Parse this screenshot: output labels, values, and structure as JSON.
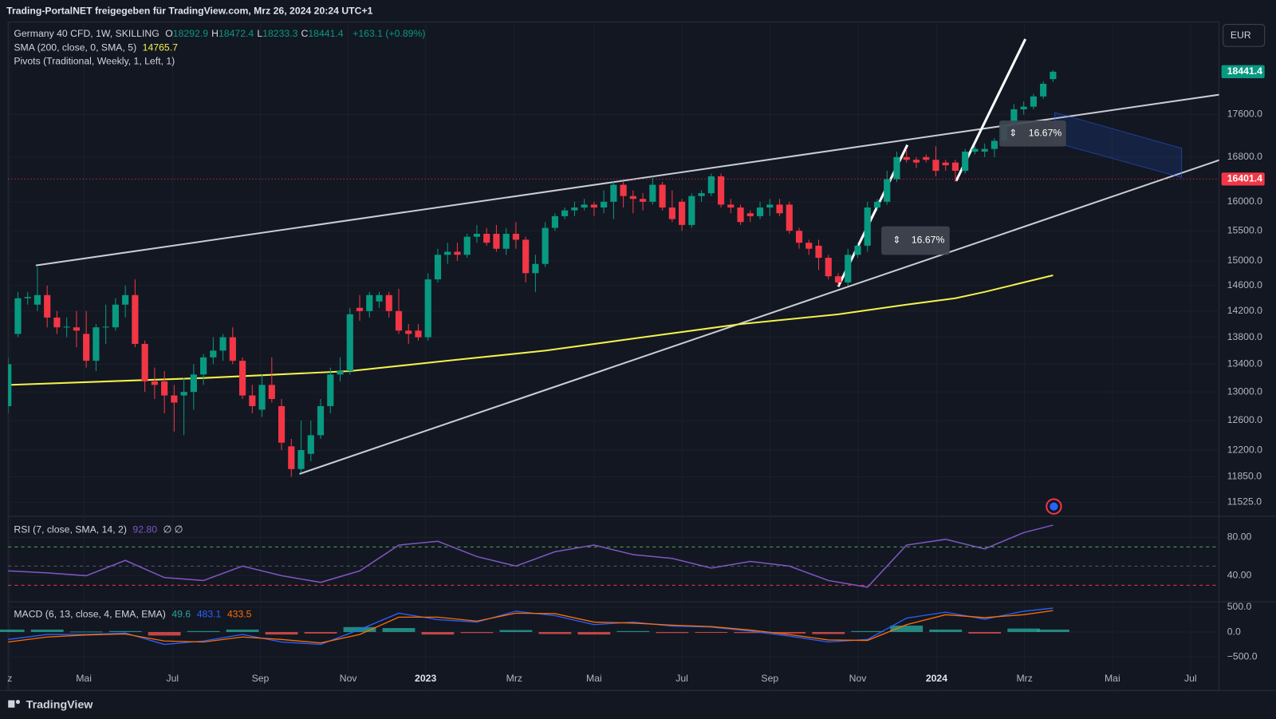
{
  "header": "Trading-PortalNET freigegeben für TradingView.com, Mrz 26, 2024 20:24 UTC+1",
  "currency": "EUR",
  "brand": "TradingView",
  "chart_data": {
    "type": "candlestick",
    "legend": {
      "symbol": "Germany 40 CFD, 1W, SKILLING",
      "ohlc": [
        {
          "key": "O",
          "value": "18292.9"
        },
        {
          "key": "H",
          "value": "18472.4"
        },
        {
          "key": "L",
          "value": "18233.3"
        },
        {
          "key": "C",
          "value": "18441.4"
        }
      ],
      "change": "+163.1 (+0.89%)"
    },
    "pivots_name": "Pivots (Traditional, Weekly, 1, Left, 1)",
    "measure_labels": [
      "16.67%",
      "16.67%"
    ],
    "xlim": [
      0,
      124
    ],
    "xticks": [
      {
        "value": 0.17,
        "label": "z"
      },
      {
        "value": 7.75,
        "label": "Mai"
      },
      {
        "value": 16.83,
        "label": "Jul"
      },
      {
        "value": 25.83,
        "label": "Sep"
      },
      {
        "value": 34.83,
        "label": "Nov"
      },
      {
        "value": 42.75,
        "label": "2023"
      },
      {
        "value": 51.83,
        "label": "Mrz"
      },
      {
        "value": 60,
        "label": "Mai"
      },
      {
        "value": 69,
        "label": "Jul"
      },
      {
        "value": 78,
        "label": "Sep"
      },
      {
        "value": 87,
        "label": "Nov"
      },
      {
        "value": 95.08,
        "label": "2024"
      },
      {
        "value": 104.08,
        "label": "Mrz"
      },
      {
        "value": 113.08,
        "label": "Mai"
      },
      {
        "value": 121.08,
        "label": "Jul"
      }
    ],
    "ylim": [
      11360,
      19470
    ],
    "log_scale": true,
    "grid": true,
    "yticks": [
      {
        "value": 17600,
        "label": "17600.0"
      },
      {
        "value": 16800,
        "label": "16800.0"
      },
      {
        "value": 16000,
        "label": "16000.0"
      },
      {
        "value": 15500,
        "label": "15500.0"
      },
      {
        "value": 15000,
        "label": "15000.0"
      },
      {
        "value": 14600,
        "label": "14600.0"
      },
      {
        "value": 14200,
        "label": "14200.0"
      },
      {
        "value": 13800,
        "label": "13800.0"
      },
      {
        "value": 13400,
        "label": "13400.0"
      },
      {
        "value": 13000,
        "label": "13000.0"
      },
      {
        "value": 12600,
        "label": "12600.0"
      },
      {
        "value": 12200,
        "label": "12200.0"
      },
      {
        "value": 11850,
        "label": "11850.0"
      },
      {
        "value": 11525,
        "label": "11525.0"
      }
    ],
    "up_color": "#089981",
    "down_color": "#f23645",
    "candles": [
      [
        12800,
        13500,
        12700,
        13400
      ],
      [
        13850,
        14500,
        13800,
        14400
      ],
      [
        14400,
        14500,
        14300,
        14420
      ],
      [
        14300,
        14900,
        14200,
        14450
      ],
      [
        14450,
        14600,
        13950,
        14100
      ],
      [
        14100,
        14200,
        13850,
        13950
      ],
      [
        13950,
        14100,
        13800,
        13960
      ],
      [
        13950,
        14200,
        13650,
        13900
      ],
      [
        13850,
        14200,
        13350,
        13450
      ],
      [
        13450,
        14000,
        13300,
        13950
      ],
      [
        13950,
        14300,
        13700,
        13960
      ],
      [
        13950,
        14400,
        13900,
        14300
      ],
      [
        14300,
        14600,
        14100,
        14450
      ],
      [
        14450,
        14700,
        13650,
        13700
      ],
      [
        13700,
        13750,
        13000,
        13150
      ],
      [
        13150,
        13350,
        12900,
        13100
      ],
      [
        13150,
        13300,
        12700,
        12950
      ],
      [
        12950,
        13100,
        12450,
        12850
      ],
      [
        12950,
        13200,
        12400,
        13000
      ],
      [
        13000,
        13400,
        12750,
        13250
      ],
      [
        13250,
        13550,
        13100,
        13500
      ],
      [
        13500,
        13800,
        13400,
        13600
      ],
      [
        13600,
        13850,
        13450,
        13800
      ],
      [
        13800,
        13950,
        13400,
        13450
      ],
      [
        13450,
        13500,
        12900,
        12950
      ],
      [
        12950,
        13100,
        12700,
        12800
      ],
      [
        12750,
        13250,
        12650,
        13100
      ],
      [
        13100,
        13500,
        12850,
        12900
      ],
      [
        12800,
        12900,
        12200,
        12300
      ],
      [
        12250,
        12350,
        11850,
        11950
      ],
      [
        11950,
        12600,
        11900,
        12200
      ],
      [
        12150,
        12600,
        12050,
        12400
      ],
      [
        12400,
        12900,
        12350,
        12800
      ],
      [
        12800,
        13350,
        12700,
        13250
      ],
      [
        13250,
        13500,
        13150,
        13300
      ],
      [
        13300,
        14250,
        13250,
        14150
      ],
      [
        14250,
        14450,
        14050,
        14200
      ],
      [
        14200,
        14500,
        14100,
        14450
      ],
      [
        14350,
        14500,
        14250,
        14450
      ],
      [
        14450,
        14500,
        14100,
        14200
      ],
      [
        14200,
        14550,
        13850,
        13900
      ],
      [
        13900,
        14000,
        13700,
        13850
      ],
      [
        13900,
        14000,
        13750,
        13800
      ],
      [
        13800,
        14800,
        13750,
        14700
      ],
      [
        14700,
        15200,
        14650,
        15100
      ],
      [
        15100,
        15300,
        14950,
        15150
      ],
      [
        15150,
        15300,
        15000,
        15100
      ],
      [
        15100,
        15450,
        15050,
        15400
      ],
      [
        15400,
        15600,
        15300,
        15450
      ],
      [
        15450,
        15550,
        15250,
        15300
      ],
      [
        15450,
        15600,
        15150,
        15200
      ],
      [
        15200,
        15550,
        15100,
        15450
      ],
      [
        15450,
        15650,
        15200,
        15350
      ],
      [
        15350,
        15400,
        14650,
        14800
      ],
      [
        14800,
        15100,
        14500,
        14950
      ],
      [
        14950,
        15650,
        14900,
        15550
      ],
      [
        15550,
        15800,
        15500,
        15750
      ],
      [
        15750,
        15900,
        15700,
        15850
      ],
      [
        15850,
        16000,
        15750,
        15900
      ],
      [
        15900,
        16050,
        15850,
        15950
      ],
      [
        15950,
        16000,
        15750,
        15900
      ],
      [
        15900,
        16200,
        15800,
        16000
      ],
      [
        16000,
        16350,
        15700,
        16300
      ],
      [
        16300,
        16350,
        15900,
        16100
      ],
      [
        16100,
        16200,
        15800,
        16050
      ],
      [
        16050,
        16150,
        15850,
        16000
      ],
      [
        16000,
        16450,
        15950,
        16300
      ],
      [
        16300,
        16350,
        15850,
        15900
      ],
      [
        15900,
        16200,
        15650,
        15700
      ],
      [
        16000,
        16050,
        15500,
        15600
      ],
      [
        15600,
        16150,
        15550,
        16100
      ],
      [
        16100,
        16200,
        16000,
        16150
      ],
      [
        16150,
        16500,
        16100,
        16450
      ],
      [
        16450,
        16500,
        15900,
        15950
      ],
      [
        15950,
        16050,
        15800,
        15900
      ],
      [
        15900,
        15950,
        15600,
        15650
      ],
      [
        15800,
        15850,
        15650,
        15750
      ],
      [
        15750,
        16000,
        15700,
        15900
      ],
      [
        15900,
        16050,
        15750,
        15950
      ],
      [
        15950,
        16050,
        15750,
        15800
      ],
      [
        15950,
        16000,
        15450,
        15500
      ],
      [
        15500,
        15550,
        15200,
        15300
      ],
      [
        15300,
        15350,
        15100,
        15200
      ],
      [
        15250,
        15350,
        14850,
        15050
      ],
      [
        15050,
        15100,
        14700,
        14750
      ],
      [
        14750,
        14800,
        14600,
        14650
      ],
      [
        14650,
        15200,
        14600,
        15100
      ],
      [
        15100,
        15300,
        15050,
        15250
      ],
      [
        15250,
        16000,
        15150,
        15900
      ],
      [
        15900,
        16050,
        15850,
        16000
      ],
      [
        16000,
        16550,
        15950,
        16400
      ],
      [
        16400,
        16900,
        16350,
        16800
      ],
      [
        16800,
        16950,
        16700,
        16750
      ],
      [
        16750,
        16800,
        16600,
        16700
      ],
      [
        16800,
        16850,
        16700,
        16750
      ],
      [
        16750,
        17000,
        16450,
        16550
      ],
      [
        16700,
        16750,
        16550,
        16650
      ],
      [
        16700,
        16750,
        16350,
        16550
      ],
      [
        16550,
        16950,
        16500,
        16900
      ],
      [
        16900,
        17000,
        16850,
        16950
      ],
      [
        16900,
        17050,
        16800,
        16950
      ],
      [
        16950,
        17150,
        16800,
        17100
      ],
      [
        17100,
        17450,
        17050,
        17400
      ],
      [
        17400,
        17800,
        17350,
        17700
      ],
      [
        17700,
        17850,
        17600,
        17750
      ],
      [
        17750,
        18000,
        17700,
        17950
      ],
      [
        17950,
        18250,
        17900,
        18200
      ],
      [
        18292.9,
        18472.4,
        18233.3,
        18441.4
      ]
    ],
    "last_price": 18441.4,
    "price_line": 16401.4,
    "sma": {
      "name": "SMA (200, close, 0, SMA, 5)",
      "last_value": 14765.7,
      "color": "#f2f24b",
      "x": [
        0,
        20,
        35,
        45,
        55,
        65,
        75,
        85,
        92,
        97,
        100,
        107
      ],
      "values": [
        13100,
        13200,
        13300,
        13450,
        13600,
        13800,
        14000,
        14150,
        14300,
        14400,
        14500,
        14765.7
      ]
    },
    "rsi": {
      "name": "RSI (7, close, SMA, 14, 2)",
      "last_value": {
        "value": 92.8,
        "label": "92.80"
      },
      "extra": "∅ ∅",
      "color": "#7e57c2",
      "ylim": [
        13.6,
        100.4
      ],
      "yticks": [
        {
          "value": 80,
          "label": "80.00"
        },
        {
          "value": 40,
          "label": "40.00"
        }
      ],
      "levels": [
        {
          "value": 70,
          "color": "#4caf50"
        },
        {
          "value": 50,
          "color": "#555a66"
        },
        {
          "value": 30,
          "color": "#f23645"
        }
      ],
      "x": [
        0,
        4,
        8,
        12,
        16,
        20,
        24,
        28,
        32,
        36,
        40,
        44,
        48,
        52,
        56,
        60,
        64,
        68,
        72,
        76,
        80,
        84,
        88,
        92,
        96,
        100,
        104,
        107
      ],
      "values": [
        45,
        43,
        40,
        56,
        38,
        35,
        50,
        40,
        33,
        45,
        72,
        76,
        60,
        50,
        65,
        72,
        62,
        58,
        48,
        55,
        50,
        35,
        28,
        72,
        78,
        68,
        85,
        92.8
      ]
    },
    "macd": {
      "name": "MACD (6, 13, close, 4, EMA, EMA)",
      "histogram_last": 49.6,
      "macd_last": 483.1,
      "signal_last": 433.5,
      "macd_color": "#2962ff",
      "signal_color": "#ff6d00",
      "hist_up_color": "#26a69a",
      "hist_down_color": "#ef5350",
      "ylim": [
        -719,
        594
      ],
      "yticks": [
        {
          "value": 500,
          "label": "500.0"
        },
        {
          "value": 0,
          "label": "0.0"
        },
        {
          "value": -500,
          "label": "−500.0"
        }
      ],
      "x": [
        0,
        4,
        8,
        12,
        16,
        20,
        24,
        28,
        32,
        36,
        40,
        44,
        48,
        52,
        56,
        60,
        64,
        68,
        72,
        76,
        80,
        84,
        88,
        92,
        96,
        100,
        104,
        107
      ],
      "macd": [
        -150,
        -50,
        -50,
        -20,
        -250,
        -180,
        -50,
        -200,
        -250,
        50,
        380,
        250,
        200,
        420,
        330,
        150,
        200,
        120,
        100,
        20,
        -80,
        -200,
        -150,
        280,
        400,
        260,
        420,
        483.1
      ],
      "signal": [
        -200,
        -100,
        -60,
        -40,
        -180,
        -200,
        -100,
        -150,
        -220,
        -50,
        300,
        300,
        220,
        380,
        370,
        200,
        180,
        140,
        110,
        40,
        -50,
        -160,
        -170,
        150,
        350,
        290,
        350,
        433.5
      ],
      "histogram": [
        50,
        50,
        10,
        20,
        -70,
        20,
        50,
        -50,
        -30,
        100,
        80,
        -50,
        -20,
        40,
        -40,
        -50,
        20,
        -20,
        -10,
        -20,
        -30,
        -40,
        20,
        130,
        50,
        -30,
        70,
        49.6
      ]
    }
  }
}
